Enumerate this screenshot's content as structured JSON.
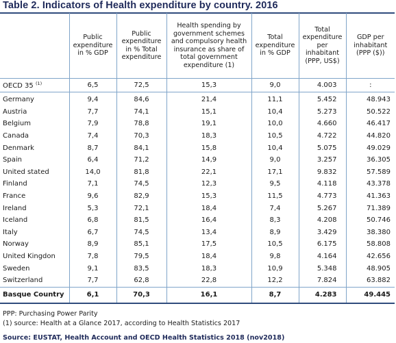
{
  "title": "Table 2. Indicators of Health expenditure by country. 2016",
  "headers": [
    "",
    "Public expenditure in % GDP",
    "Public expenditure in % Total expenditure",
    "Health spending by government schemes and compulsory health insurance as share of total government expenditure (1)",
    "Total expenditure in % GDP",
    "Total expenditure per inhabitant (PPP, US$)",
    "GDP per inhabitant (PPP ($))"
  ],
  "oecd": {
    "name": "OECD 35",
    "note_mark": "(1)",
    "values": [
      "6,5",
      "72,5",
      "15,3",
      "9,0",
      "4.003",
      ":"
    ]
  },
  "rows": [
    {
      "name": "Germany",
      "values": [
        "9,4",
        "84,6",
        "21,4",
        "11,1",
        "5.452",
        "48.943"
      ]
    },
    {
      "name": "Austria",
      "values": [
        "7,7",
        "74,1",
        "15,1",
        "10,4",
        "5.273",
        "50.522"
      ]
    },
    {
      "name": "Belgium",
      "values": [
        "7,9",
        "78,8",
        "19,1",
        "10,0",
        "4.660",
        "46.417"
      ]
    },
    {
      "name": "Canada",
      "values": [
        "7,4",
        "70,3",
        "18,3",
        "10,5",
        "4.722",
        "44.820"
      ]
    },
    {
      "name": "Denmark",
      "values": [
        "8,7",
        "84,1",
        "15,8",
        "10,4",
        "5.075",
        "49.029"
      ]
    },
    {
      "name": "Spain",
      "values": [
        "6,4",
        "71,2",
        "14,9",
        "9,0",
        "3.257",
        "36.305"
      ]
    },
    {
      "name": "United stated",
      "values": [
        "14,0",
        "81,8",
        "22,1",
        "17,1",
        "9.832",
        "57.589"
      ]
    },
    {
      "name": "Finland",
      "values": [
        "7,1",
        "74,5",
        "12,3",
        "9,5",
        "4.118",
        "43.378"
      ]
    },
    {
      "name": "France",
      "values": [
        "9,6",
        "82,9",
        "15,3",
        "11,5",
        "4.773",
        "41.363"
      ]
    },
    {
      "name": "Ireland",
      "values": [
        "5,3",
        "72,1",
        "18,4",
        "7,4",
        "5.267",
        "71.389"
      ]
    },
    {
      "name": "Iceland",
      "values": [
        "6,8",
        "81,5",
        "16,4",
        "8,3",
        "4.208",
        "50.746"
      ]
    },
    {
      "name": "Italy",
      "values": [
        "6,7",
        "74,5",
        "13,4",
        "8,9",
        "3.429",
        "38.380"
      ]
    },
    {
      "name": "Norway",
      "values": [
        "8,9",
        "85,1",
        "17,5",
        "10,5",
        "6.175",
        "58.808"
      ]
    },
    {
      "name": "United Kingdon",
      "values": [
        "7,8",
        "79,5",
        "18,4",
        "9,8",
        "4.164",
        "42.656"
      ]
    },
    {
      "name": "Sweden",
      "values": [
        "9,1",
        "83,5",
        "18,3",
        "10,9",
        "5.348",
        "48.905"
      ]
    },
    {
      "name": "Switzerland",
      "values": [
        "7,7",
        "62,8",
        "22,8",
        "12,2",
        "7.824",
        "63.882"
      ]
    }
  ],
  "basque": {
    "name": "Basque Country",
    "values": [
      "6,1",
      "70,3",
      "16,1",
      "8,7",
      "4.283",
      "49.445"
    ]
  },
  "notes": [
    "PPP: Purchasing Power Parity",
    "(1) source: Health at a Glance 2017, according to Health Statistics 2017"
  ],
  "source": "Source: EUSTAT, Health Account and OECD Health Statistics 2018 (nov2018)"
}
